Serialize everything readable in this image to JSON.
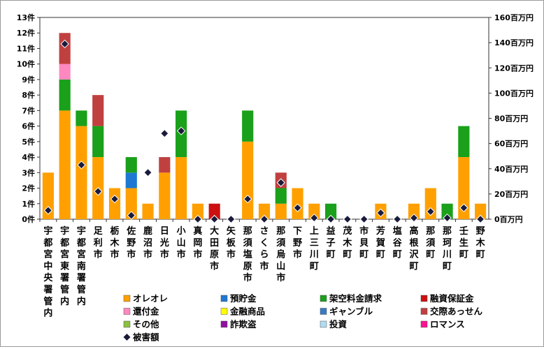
{
  "chart_data": {
    "type": "bar",
    "stacked": true,
    "categories": [
      "宇都宮中央署管内",
      "宇都宮東署管内",
      "宇都宮南署管内",
      "足利市",
      "栃木市",
      "佐野市",
      "鹿沼市",
      "日光市",
      "小山市",
      "真岡市",
      "大田原市",
      "矢板市",
      "那須塩原市",
      "さくら市",
      "那須烏山市",
      "下野市",
      "上三川町",
      "益子町",
      "茂木町",
      "市貝町",
      "芳賀町",
      "塩谷町",
      "高根沢町",
      "那須町",
      "那珂川町",
      "壬生町",
      "野木町"
    ],
    "y_left": {
      "ticks": [
        "0件",
        "1件",
        "2件",
        "3件",
        "4件",
        "5件",
        "6件",
        "7件",
        "8件",
        "9件",
        "10件",
        "11件",
        "12件",
        "13件"
      ],
      "ylim": [
        0,
        13
      ]
    },
    "y_right": {
      "ticks": [
        "0百万円",
        "20百万円",
        "40百万円",
        "60百万円",
        "80百万円",
        "100百万円",
        "120百万円",
        "140百万円",
        "160百万円"
      ],
      "ylim": [
        0,
        160
      ]
    },
    "grid": false,
    "legend_position": "bottom",
    "series": [
      {
        "name": "オレオレ",
        "color": "#ffa000",
        "values": [
          3,
          7,
          6,
          4,
          2,
          2,
          1,
          3,
          4,
          1,
          0,
          0,
          5,
          1,
          1,
          2,
          1,
          0,
          0,
          0,
          1,
          0,
          1,
          2,
          0,
          4,
          1
        ]
      },
      {
        "name": "預貯金",
        "color": "#1e78d2",
        "values": [
          0,
          0,
          0,
          0,
          0,
          1,
          0,
          0,
          0,
          0,
          0,
          0,
          0,
          0,
          0,
          0,
          0,
          0,
          0,
          0,
          0,
          0,
          0,
          0,
          0,
          0,
          0
        ]
      },
      {
        "name": "架空料金請求",
        "color": "#1aa01a",
        "values": [
          0,
          2,
          1,
          2,
          0,
          1,
          0,
          0,
          3,
          0,
          0,
          0,
          2,
          0,
          1,
          0,
          0,
          1,
          0,
          0,
          0,
          0,
          0,
          0,
          1,
          2,
          0
        ]
      },
      {
        "name": "融資保証金",
        "color": "#cc1010",
        "values": [
          0,
          0,
          0,
          0,
          0,
          0,
          0,
          0,
          0,
          0,
          1,
          0,
          0,
          0,
          0,
          0,
          0,
          0,
          0,
          0,
          0,
          0,
          0,
          0,
          0,
          0,
          0
        ]
      },
      {
        "name": "還付金",
        "color": "#ff88c0",
        "values": [
          0,
          1,
          0,
          0,
          0,
          0,
          0,
          0,
          0,
          0,
          0,
          0,
          0,
          0,
          0,
          0,
          0,
          0,
          0,
          0,
          0,
          0,
          0,
          0,
          0,
          0,
          0
        ]
      },
      {
        "name": "金融商品",
        "color": "#ffff00",
        "values": [
          0,
          0,
          0,
          0,
          0,
          0,
          0,
          0,
          0,
          0,
          0,
          0,
          0,
          0,
          0,
          0,
          0,
          0,
          0,
          0,
          0,
          0,
          0,
          0,
          0,
          0,
          0
        ]
      },
      {
        "name": "ギャンブル",
        "color": "#3a7ac0",
        "values": [
          0,
          0,
          0,
          0,
          0,
          0,
          0,
          0,
          0,
          0,
          0,
          0,
          0,
          0,
          0,
          0,
          0,
          0,
          0,
          0,
          0,
          0,
          0,
          0,
          0,
          0,
          0
        ]
      },
      {
        "name": "交際あっせん",
        "color": "#c04040",
        "values": [
          0,
          2,
          0,
          2,
          0,
          0,
          0,
          1,
          0,
          0,
          0,
          0,
          0,
          0,
          1,
          0,
          0,
          0,
          0,
          0,
          0,
          0,
          0,
          0,
          0,
          0,
          0
        ]
      },
      {
        "name": "その他",
        "color": "#8cc040",
        "values": [
          0,
          0,
          0,
          0,
          0,
          0,
          0,
          0,
          0,
          0,
          0,
          0,
          0,
          0,
          0,
          0,
          0,
          0,
          0,
          0,
          0,
          0,
          0,
          0,
          0,
          0,
          0
        ]
      },
      {
        "name": "詐欺盗",
        "color": "#9010a0",
        "values": [
          0,
          0,
          0,
          0,
          0,
          0,
          0,
          0,
          0,
          0,
          0,
          0,
          0,
          0,
          0,
          0,
          0,
          0,
          0,
          0,
          0,
          0,
          0,
          0,
          0,
          0,
          0
        ]
      },
      {
        "name": "投資",
        "color": "#b0dcf0",
        "values": [
          0,
          0,
          0,
          0,
          0,
          0,
          0,
          0,
          0,
          0,
          0,
          0,
          0,
          0,
          0,
          0,
          0,
          0,
          0,
          0,
          0,
          0,
          0,
          0,
          0,
          0,
          0
        ]
      },
      {
        "name": "ロマンス",
        "color": "#ff1090",
        "values": [
          0,
          0,
          0,
          0,
          0,
          0,
          0,
          0,
          0,
          0,
          0,
          0,
          0,
          0,
          0,
          0,
          0,
          0,
          0,
          0,
          0,
          0,
          0,
          0,
          0,
          0,
          0
        ]
      }
    ],
    "line_series": {
      "name": "被害額",
      "type": "scatter",
      "axis": "right",
      "marker": "diamond",
      "color": "#1a1a3a",
      "values": [
        7,
        139,
        43,
        22,
        16,
        3,
        37,
        68,
        70,
        0,
        0,
        0,
        16,
        0,
        29,
        9,
        1,
        0,
        0,
        0,
        5,
        0,
        1,
        6,
        1,
        9,
        0
      ]
    }
  }
}
